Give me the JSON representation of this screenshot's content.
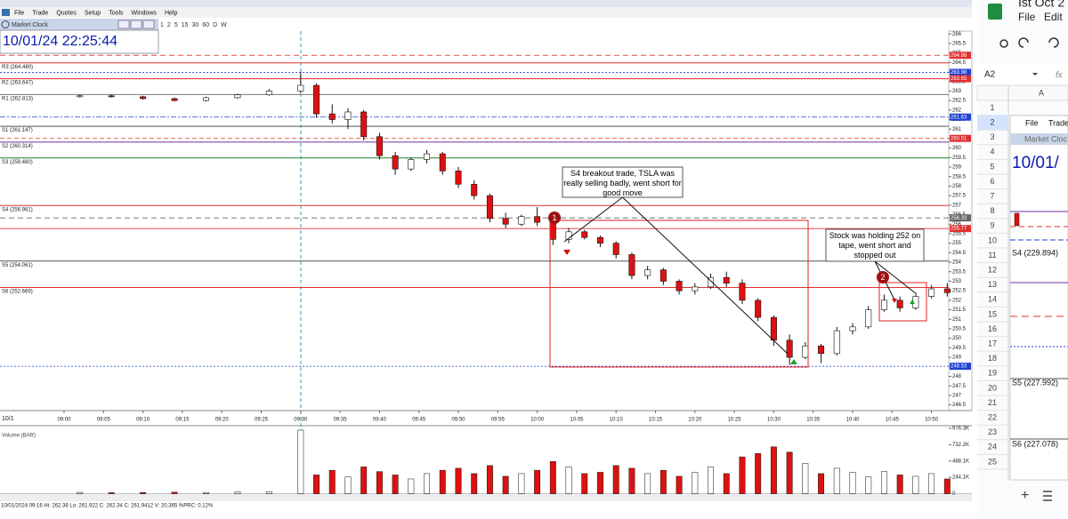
{
  "window": {
    "menu": [
      "File",
      "Trade",
      "Quotes",
      "Setup",
      "Tools",
      "Windows",
      "Help"
    ],
    "intervals": [
      "1",
      "2",
      "5",
      "15",
      "30",
      "60",
      "D",
      "W"
    ]
  },
  "clock": {
    "title": "Market Clock",
    "time": "10/01/24 22:25:44"
  },
  "chart_data": {
    "type": "candlestick",
    "date_label": "10/1",
    "x": [
      "09:02",
      "09:06",
      "09:10",
      "09:14",
      "09:18",
      "09:22",
      "09:26",
      "09:30",
      "09:32",
      "09:34",
      "09:36",
      "09:38",
      "09:40",
      "09:42",
      "09:44",
      "09:46",
      "09:48",
      "09:50",
      "09:52",
      "09:54",
      "09:56",
      "09:58",
      "10:00",
      "10:02",
      "10:04",
      "10:06",
      "10:08",
      "10:10",
      "10:12",
      "10:14",
      "10:16",
      "10:18",
      "10:20",
      "10:22",
      "10:24",
      "10:26",
      "10:28",
      "10:30",
      "10:32",
      "10:34",
      "10:36",
      "10:38",
      "10:40",
      "10:42",
      "10:44",
      "10:46",
      "10:48",
      "10:50",
      "10:52"
    ],
    "open": [
      262.7,
      262.75,
      262.7,
      262.6,
      262.5,
      262.65,
      262.8,
      263.0,
      263.3,
      261.8,
      261.5,
      261.9,
      260.6,
      259.6,
      258.9,
      259.4,
      259.7,
      258.8,
      258.1,
      257.5,
      256.3,
      256.0,
      256.4,
      256.1,
      255.2,
      255.6,
      255.3,
      255.0,
      254.4,
      253.3,
      253.6,
      253.0,
      252.5,
      252.7,
      253.2,
      252.9,
      252.0,
      251.1,
      249.9,
      249.0,
      249.6,
      249.2,
      250.4,
      250.6,
      251.5,
      252.0,
      251.6,
      252.2,
      252.6
    ],
    "high": [
      262.8,
      262.8,
      262.75,
      262.65,
      262.7,
      262.85,
      263.1,
      264.0,
      263.4,
      262.3,
      262.1,
      262.0,
      260.8,
      259.8,
      259.5,
      259.9,
      259.8,
      259.0,
      258.3,
      257.6,
      256.6,
      256.5,
      256.9,
      256.3,
      255.8,
      255.7,
      255.4,
      255.1,
      254.5,
      253.8,
      253.7,
      253.1,
      252.9,
      253.4,
      253.5,
      253.1,
      252.1,
      251.2,
      250.2,
      249.8,
      249.7,
      250.6,
      250.8,
      251.7,
      252.3,
      252.2,
      252.3,
      252.8,
      252.9
    ],
    "low": [
      262.65,
      262.65,
      262.55,
      262.45,
      262.45,
      262.6,
      262.75,
      262.9,
      261.6,
      261.3,
      261.0,
      260.4,
      259.4,
      258.6,
      258.8,
      259.2,
      258.6,
      257.9,
      257.3,
      256.1,
      255.8,
      255.9,
      255.9,
      254.9,
      255.0,
      255.2,
      254.8,
      254.2,
      253.1,
      253.1,
      252.8,
      252.3,
      252.3,
      252.6,
      252.7,
      251.8,
      250.9,
      249.6,
      248.6,
      248.9,
      248.7,
      249.1,
      250.2,
      250.5,
      251.4,
      251.4,
      251.5,
      252.1,
      252.2
    ],
    "close": [
      262.75,
      262.7,
      262.6,
      262.5,
      262.65,
      262.8,
      263.0,
      263.3,
      261.8,
      261.5,
      261.9,
      260.6,
      259.6,
      258.9,
      259.4,
      259.7,
      258.8,
      258.1,
      257.5,
      256.3,
      256.0,
      256.4,
      256.1,
      255.2,
      255.6,
      255.3,
      255.0,
      254.4,
      253.3,
      253.6,
      253.0,
      252.5,
      252.7,
      253.2,
      252.9,
      252.0,
      251.1,
      249.9,
      249.0,
      249.6,
      249.2,
      250.4,
      250.6,
      251.5,
      252.0,
      251.6,
      252.2,
      252.6,
      252.4
    ],
    "up_color": "#ffffff",
    "down_color": "#e01010",
    "ylim": [
      246.2,
      266.15
    ],
    "yticks": [
      246.5,
      247,
      247.5,
      248,
      248.5,
      249,
      249.5,
      250,
      250.5,
      251,
      251.5,
      252,
      252.5,
      253,
      253.5,
      254,
      254.5,
      255,
      255.5,
      256,
      256.5,
      257,
      257.5,
      258,
      258.5,
      259,
      259.5,
      260,
      260.5,
      261,
      261.5,
      262,
      262.5,
      263,
      263.5,
      264,
      264.5,
      265,
      265.5,
      266
    ],
    "xticks": [
      "09:00",
      "09:05",
      "09:10",
      "09:15",
      "09:20",
      "09:25",
      "09:30",
      "09:35",
      "09:40",
      "09:45",
      "09:50",
      "09:55",
      "10:00",
      "10:05",
      "10:10",
      "10:15",
      "10:20",
      "10:25",
      "10:30",
      "10:35",
      "10:40",
      "10:45",
      "10:50"
    ],
    "levels": [
      {
        "label": "R3 (264.480)",
        "value": 264.48,
        "color": "#e03030"
      },
      {
        "label": "R2 (263.647)",
        "value": 263.647,
        "color": "#e03030"
      },
      {
        "label": "R1 (262.813)",
        "value": 262.813,
        "color": "#777777"
      },
      {
        "label": "S1 (261.147)",
        "value": 261.147,
        "color": "#555555"
      },
      {
        "label": "S2 (260.314)",
        "value": 260.314,
        "color": "#7030a0"
      },
      {
        "label": "S3 (259.480)",
        "value": 259.48,
        "color": "#208020"
      },
      {
        "label": "S4 (256.981)",
        "value": 256.981,
        "color": "#e03030"
      },
      {
        "label": "S5 (254.061)",
        "value": 254.061,
        "color": "#555555"
      },
      {
        "label": "S6 (252.669)",
        "value": 252.669,
        "color": "#e03030"
      }
    ],
    "price_tags": [
      {
        "value": 264.88,
        "label": "264.88",
        "color": "#e03030"
      },
      {
        "value": 263.98,
        "label": "263.98",
        "color": "#2040d0"
      },
      {
        "value": 263.65,
        "label": "263.65",
        "color": "#e03030"
      },
      {
        "value": 261.63,
        "label": "261.63",
        "color": "#2040d0"
      },
      {
        "value": 260.51,
        "label": "260.51",
        "color": "#e03030"
      },
      {
        "value": 256.33,
        "label": "256.33",
        "color": "#666666"
      },
      {
        "value": 255.77,
        "label": "255.77",
        "color": "#e03030"
      },
      {
        "value": 248.53,
        "label": "248.53",
        "color": "#2040d0"
      }
    ],
    "volume": {
      "title": "Volume (BAR)",
      "values": [
        20000,
        15000,
        18000,
        22000,
        15000,
        25000,
        30000,
        950000,
        280000,
        350000,
        250000,
        400000,
        330000,
        280000,
        220000,
        300000,
        350000,
        380000,
        300000,
        420000,
        260000,
        300000,
        350000,
        480000,
        400000,
        300000,
        320000,
        420000,
        380000,
        300000,
        350000,
        260000,
        320000,
        400000,
        300000,
        550000,
        600000,
        700000,
        620000,
        450000,
        300000,
        380000,
        320000,
        250000,
        330000,
        280000,
        260000,
        300000,
        220000
      ],
      "ylim": [
        0,
        976300
      ],
      "yticks": [
        0,
        {
          "value": 244100,
          "label": "244.1K"
        },
        {
          "value": 488100,
          "label": "488.1K"
        },
        {
          "value": 732200,
          "label": "732.2K"
        },
        {
          "value": 976300,
          "label": "976.3K"
        }
      ]
    },
    "annotations": [
      {
        "marker": "1",
        "text": "S4 breakout trade, TSLA was really selling badly, went short for good move"
      },
      {
        "marker": "2",
        "text": "Stock was holding 252 on tape, went short and stopped out"
      }
    ]
  },
  "status": "10/01/2024 09:16   Hi: 262.38   Lo: 261.922   C: 262.34   C: 261.9412   V: 20,365 %PRC: 0.12%",
  "sheet": {
    "title": "Ist Oct 2",
    "menu": [
      "File",
      "Edit"
    ],
    "cell": "A2",
    "fx": "fx",
    "column": "A",
    "rows": [
      1,
      2,
      3,
      4,
      5,
      6,
      7,
      8,
      9,
      10,
      11,
      12,
      13,
      14,
      15,
      16,
      17,
      18,
      19,
      20,
      21,
      22,
      23,
      24,
      25
    ],
    "image_texts": [
      "File",
      "Trade",
      "Market Cloc",
      "10/01/",
      "S4 (229.894)",
      "S5 (227.992)",
      "S6 (227.078)"
    ],
    "add": "+"
  }
}
